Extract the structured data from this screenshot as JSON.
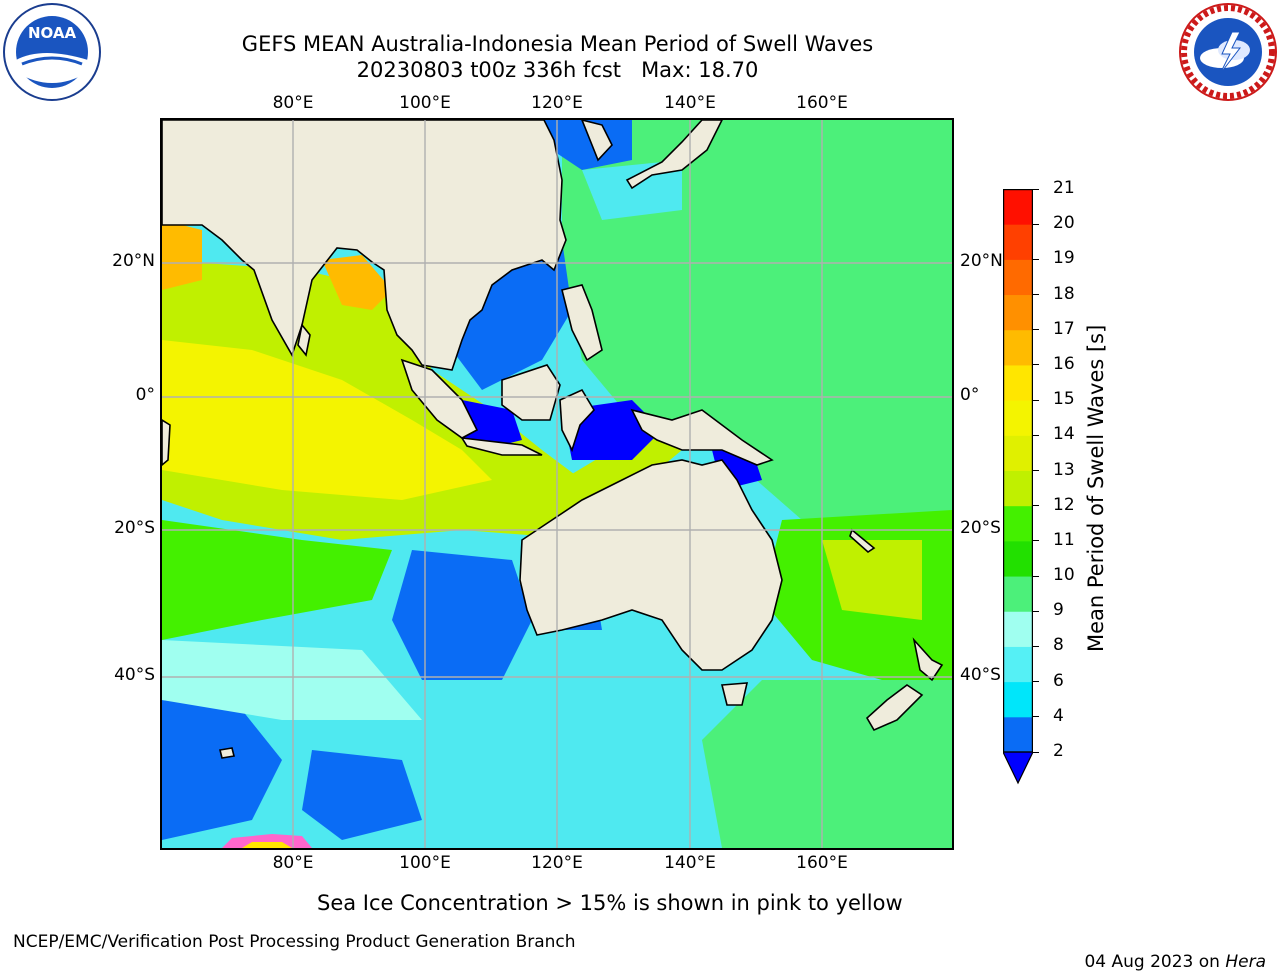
{
  "header": {
    "title_line1": "GEFS MEAN Australia-Indonesia Mean Period of Swell Waves",
    "title_line2": "20230803 t00z 336h fcst   Max: 18.70"
  },
  "logos": {
    "left": "NOAA",
    "left_ring_text": "NATIONAL OCEANIC AND ATMOSPHERIC ADMINISTRATION · U.S. DEPARTMENT OF COMMERCE",
    "right_ring_text": "NATIONAL WEATHER SERVICE"
  },
  "map": {
    "lon_labels": [
      "80°E",
      "100°E",
      "120°E",
      "140°E",
      "160°E"
    ],
    "lat_labels": [
      "20°N",
      "0°",
      "20°S",
      "40°S"
    ],
    "colors": {
      "land": "#efecdc",
      "grid": "#b0b0b0",
      "ocean_default": "#4fe9f0"
    }
  },
  "colorbar": {
    "title": "Mean Period of Swell Waves [s]",
    "levels": [
      "2",
      "4",
      "6",
      "8",
      "9",
      "10",
      "11",
      "12",
      "13",
      "14",
      "15",
      "16",
      "17",
      "18",
      "19",
      "20",
      "21"
    ],
    "colors": [
      "#0a6cf5",
      "#00e6fa",
      "#55f0f5",
      "#a0fff0",
      "#4cf07a",
      "#22e000",
      "#44f000",
      "#c0f000",
      "#e0f000",
      "#f4f400",
      "#ffe600",
      "#ffbb00",
      "#ff9000",
      "#ff6a00",
      "#ff4000",
      "#ff1000"
    ],
    "under_color": "#0000ff"
  },
  "notes": {
    "sea_ice": "Sea Ice Concentration > 15% is shown in pink to yellow"
  },
  "footer": {
    "left": "NCEP/EMC/Verification Post Processing Product Generation Branch",
    "date": "04 Aug 2023 on ",
    "machine": "Hera"
  }
}
